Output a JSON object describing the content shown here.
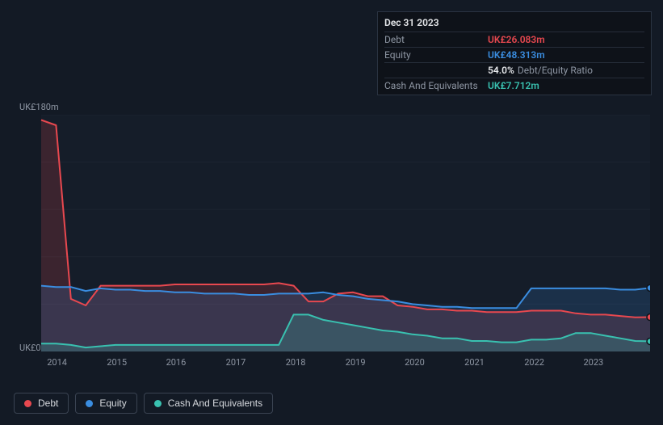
{
  "chart": {
    "type": "area",
    "background_color": "#131a25",
    "plot_background": "#151d29",
    "grid_color": "#1c2431",
    "ylim": [
      0,
      180
    ],
    "ylabel_top": "UK£180m",
    "ylabel_bottom": "UK£0",
    "x_years": [
      "2014",
      "2015",
      "2016",
      "2017",
      "2018",
      "2019",
      "2020",
      "2021",
      "2022",
      "2023"
    ],
    "x_positions_pct": [
      6.8,
      16.2,
      25.5,
      34.9,
      44.3,
      53.7,
      63.0,
      72.4,
      81.8,
      91.1
    ],
    "series": {
      "debt": {
        "color": "#e8484f",
        "fill": "#e8484f",
        "fill_opacity": 0.18,
        "values": [
          176,
          172,
          40,
          35,
          50,
          50,
          50,
          50,
          50,
          51,
          51,
          51,
          51,
          51,
          51,
          51,
          52,
          50,
          38,
          38,
          44,
          45,
          42,
          42,
          35,
          34,
          32,
          32,
          31,
          31,
          30,
          30,
          30,
          31,
          31,
          31,
          29,
          28,
          28,
          27,
          26,
          26.083
        ]
      },
      "equity": {
        "color": "#3a8de0",
        "fill": "#3a8de0",
        "fill_opacity": 0.18,
        "values": [
          50,
          49,
          49,
          46,
          48,
          47,
          47,
          46,
          46,
          45,
          45,
          44,
          44,
          44,
          43,
          43,
          44,
          44,
          44,
          45,
          43,
          42,
          40,
          39,
          38,
          36,
          35,
          34,
          34,
          33,
          33,
          33,
          33,
          48,
          48,
          48,
          48,
          48,
          48,
          47,
          47,
          48.313
        ]
      },
      "cash": {
        "color": "#39c1b0",
        "fill": "#39c1b0",
        "fill_opacity": 0.22,
        "values": [
          6,
          6,
          5,
          3,
          4,
          5,
          5,
          5,
          5,
          5,
          5,
          5,
          5,
          5,
          5,
          5,
          5,
          28,
          28,
          24,
          22,
          20,
          18,
          16,
          15,
          13,
          12,
          10,
          10,
          8,
          8,
          7,
          7,
          9,
          9,
          10,
          14,
          14,
          12,
          10,
          8,
          7.712
        ]
      }
    }
  },
  "tooltip": {
    "date": "Dec 31 2023",
    "rows": [
      {
        "label": "Debt",
        "value": "UK£26.083m",
        "class": "debt"
      },
      {
        "label": "Equity",
        "value": "UK£48.313m",
        "class": "equity"
      },
      {
        "label": "",
        "value": "54.0%",
        "class": "ratio",
        "suffix": "Debt/Equity Ratio"
      },
      {
        "label": "Cash And Equivalents",
        "value": "UK£7.712m",
        "class": "cash"
      }
    ]
  },
  "legend": [
    {
      "label": "Debt",
      "color": "#e8484f"
    },
    {
      "label": "Equity",
      "color": "#3a8de0"
    },
    {
      "label": "Cash And Equivalents",
      "color": "#39c1b0"
    }
  ]
}
